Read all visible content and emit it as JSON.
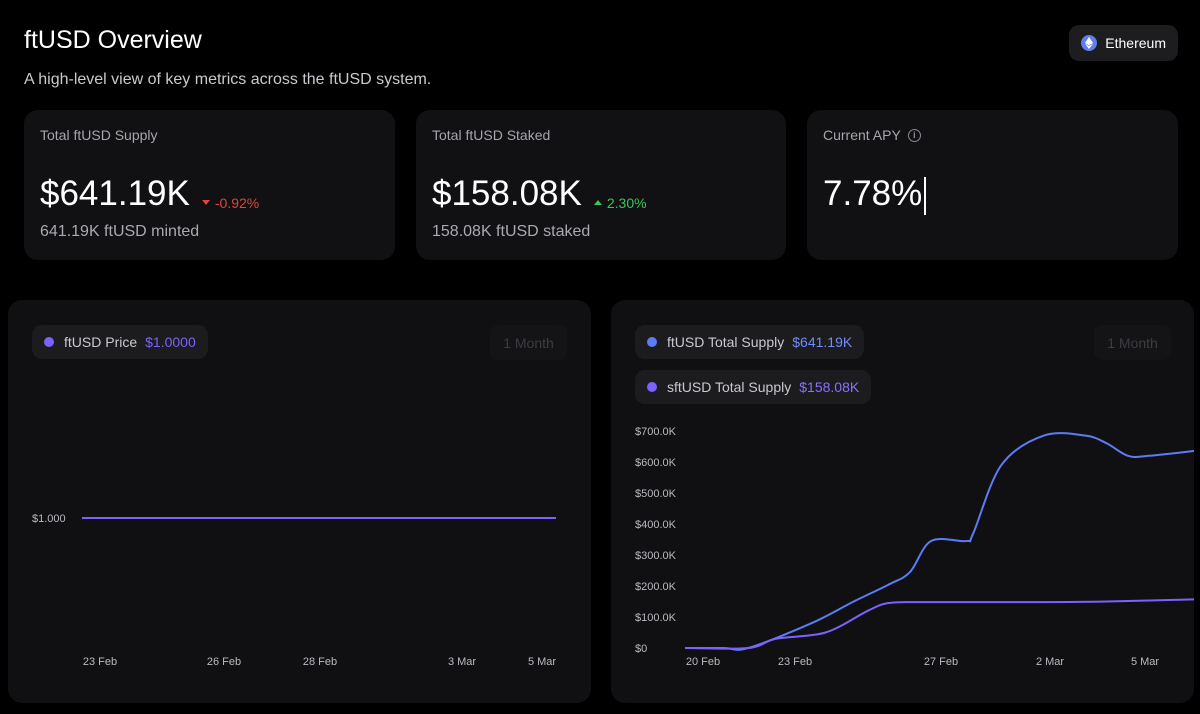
{
  "header": {
    "title": "ftUSD Overview",
    "subtitle": "A high-level view of key metrics across the ftUSD system.",
    "network_label": "Ethereum"
  },
  "cards": {
    "supply": {
      "label": "Total ftUSD Supply",
      "value": "$641.19K",
      "change": "-0.92%",
      "sub": "641.19K ftUSD minted"
    },
    "staked": {
      "label": "Total ftUSD Staked",
      "value": "$158.08K",
      "change": "2.30%",
      "sub": "158.08K ftUSD staked"
    },
    "apy": {
      "label": "Current APY",
      "value": "7.78%"
    }
  },
  "price_panel": {
    "legend_label": "ftUSD Price",
    "legend_value": "$1.0000",
    "range_label": "1 Month"
  },
  "supply_panel": {
    "legend1_label": "ftUSD Total Supply",
    "legend1_value": "$641.19K",
    "legend2_label": "sftUSD Total Supply",
    "legend2_value": "$158.08K",
    "range_label": "1 Month"
  },
  "colors": {
    "accent_purple": "#7b61ff",
    "accent_blue": "#5b7cf5",
    "down": "#e0443a",
    "up": "#3cc45b"
  },
  "chart_data": [
    {
      "type": "line",
      "title": "ftUSD Price",
      "y_tick_labels": [
        "$1.000"
      ],
      "x_tick_labels": [
        "23 Feb",
        "26 Feb",
        "28 Feb",
        "3 Mar",
        "5 Mar"
      ],
      "series": [
        {
          "name": "ftUSD Price",
          "x": [
            "23 Feb",
            "5 Mar"
          ],
          "values": [
            1.0,
            1.0
          ]
        }
      ]
    },
    {
      "type": "line",
      "title": "ftUSD / sftUSD Total Supply",
      "ylim": [
        0,
        700000
      ],
      "y_tick_labels": [
        "$0",
        "$100.0K",
        "$200.0K",
        "$300.0K",
        "$400.0K",
        "$500.0K",
        "$600.0K",
        "$700.0K"
      ],
      "x_tick_labels": [
        "20 Feb",
        "23 Feb",
        "27 Feb",
        "2 Mar",
        "5 Mar"
      ],
      "series": [
        {
          "name": "ftUSD Total Supply",
          "x": [
            0,
            0.55,
            0.9,
            1.8,
            2.4,
            2.9,
            3.2,
            3.5,
            4.0,
            4.1,
            4.5,
            5.1,
            5.7,
            6.0,
            6.3,
            6.6,
            7.4
          ],
          "values": [
            0,
            0,
            0,
            80000,
            150000,
            205000,
            245000,
            345000,
            345000,
            370000,
            590000,
            685000,
            685000,
            660000,
            620000,
            620000,
            640000
          ]
        },
        {
          "name": "sftUSD Total Supply",
          "x": [
            0,
            0.9,
            1.3,
            2.0,
            2.6,
            2.9,
            3.4,
            5.0,
            6.0,
            7.4
          ],
          "values": [
            0,
            0,
            30000,
            50000,
            120000,
            145000,
            148000,
            148000,
            150000,
            158000
          ]
        }
      ]
    }
  ]
}
